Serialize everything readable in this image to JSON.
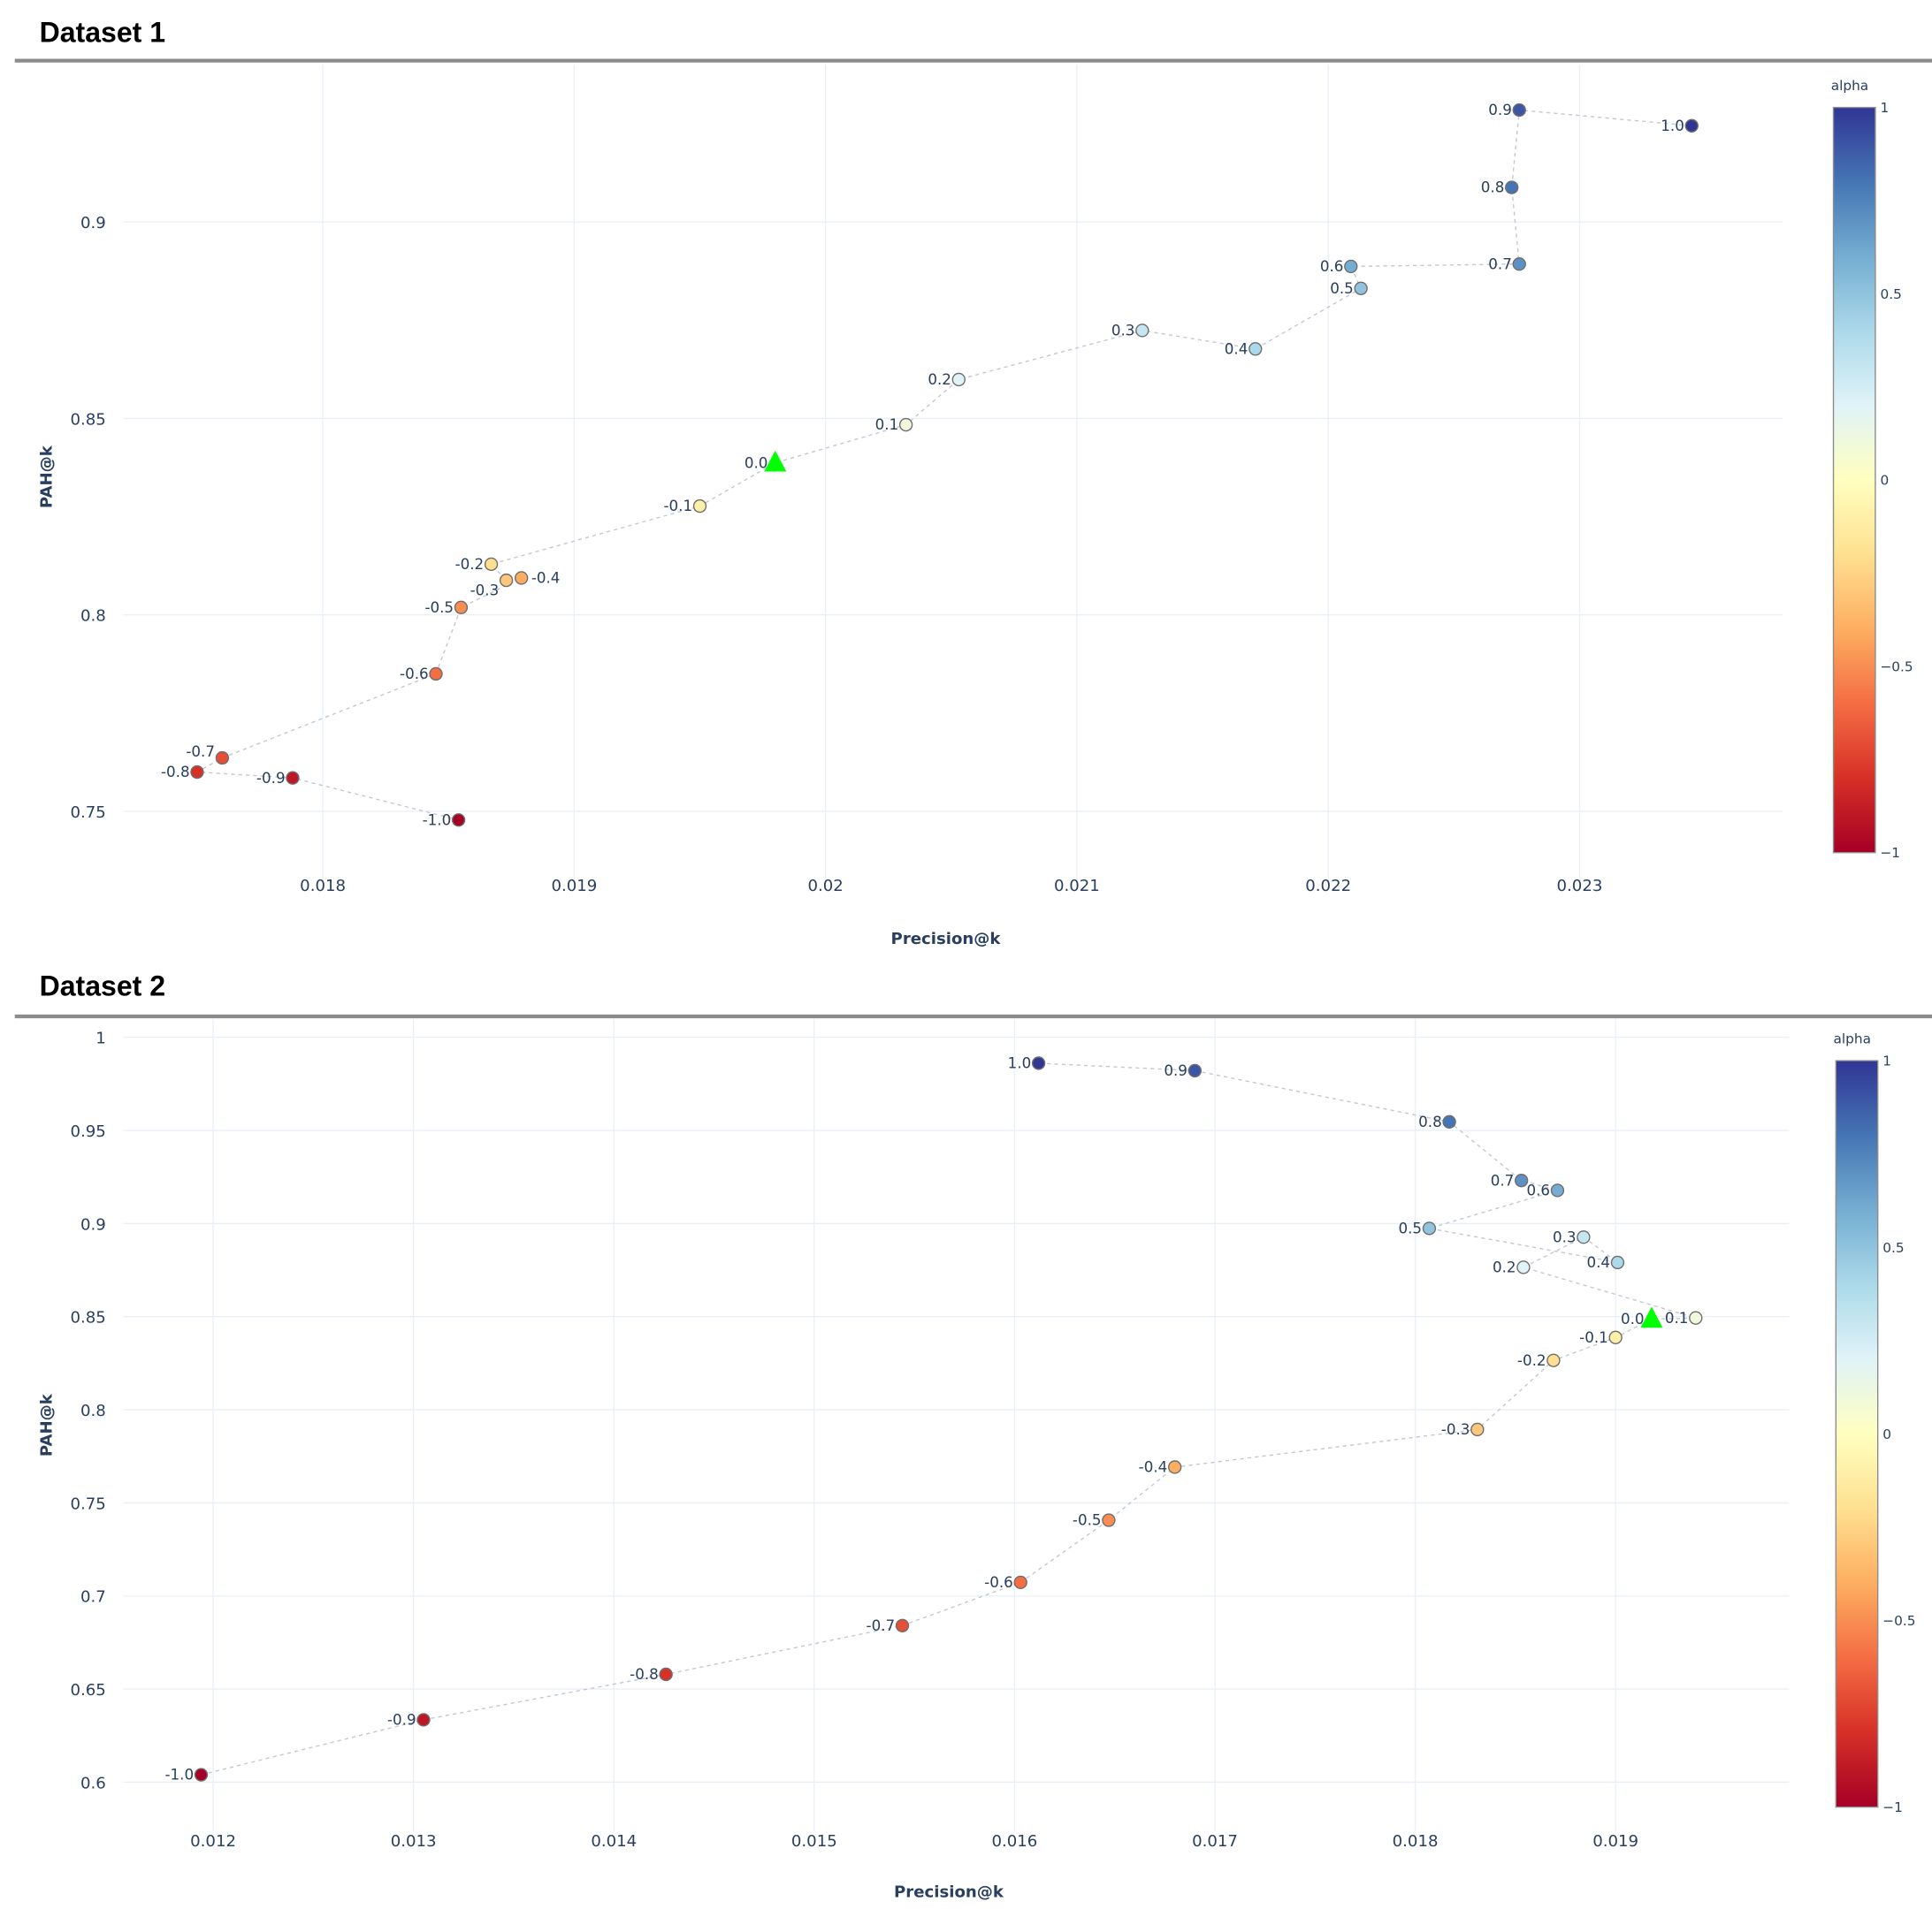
{
  "chart_data": [
    {
      "type": "scatter",
      "title": "Dataset 1",
      "xlabel": "Precision@k",
      "ylabel": "PAH@k",
      "xticks": [
        "0.018",
        "0.019",
        "0.02",
        "0.021",
        "0.022",
        "0.023"
      ],
      "yticks": [
        "0.75",
        "0.8",
        "0.85",
        "0.9"
      ],
      "grid": true,
      "colorbar": {
        "title": "alpha",
        "ticks": [
          "1",
          "0.5",
          "0",
          "−0.5",
          "−1"
        ],
        "colorscale": "RdYlBu",
        "range": [
          -1,
          1
        ]
      },
      "baseline_marker": {
        "shape": "triangle",
        "color": "#00ff00",
        "alpha_label": "0.0"
      },
      "points": [
        {
          "label": "-1.0",
          "alpha": -1.0,
          "x": 0.01854,
          "y": 0.7478
        },
        {
          "label": "-0.9",
          "alpha": -0.9,
          "x": 0.01788,
          "y": 0.7585
        },
        {
          "label": "-0.8",
          "alpha": -0.8,
          "x": 0.0175,
          "y": 0.76
        },
        {
          "label": "-0.7",
          "alpha": -0.7,
          "x": 0.0176,
          "y": 0.7636
        },
        {
          "label": "-0.6",
          "alpha": -0.6,
          "x": 0.01845,
          "y": 0.785
        },
        {
          "label": "-0.5",
          "alpha": -0.5,
          "x": 0.01855,
          "y": 0.8019
        },
        {
          "label": "-0.4",
          "alpha": -0.4,
          "x": 0.01879,
          "y": 0.8094
        },
        {
          "label": "-0.3",
          "alpha": -0.3,
          "x": 0.01873,
          "y": 0.8088
        },
        {
          "label": "-0.2",
          "alpha": -0.2,
          "x": 0.01867,
          "y": 0.8129
        },
        {
          "label": "-0.1",
          "alpha": -0.1,
          "x": 0.0195,
          "y": 0.8277
        },
        {
          "label": "0.0",
          "alpha": 0.0,
          "x": 0.0198,
          "y": 0.8387,
          "baseline": true
        },
        {
          "label": "0.1",
          "alpha": 0.1,
          "x": 0.02032,
          "y": 0.8484
        },
        {
          "label": "0.2",
          "alpha": 0.2,
          "x": 0.02053,
          "y": 0.8599
        },
        {
          "label": "0.3",
          "alpha": 0.3,
          "x": 0.02126,
          "y": 0.8724
        },
        {
          "label": "0.4",
          "alpha": 0.4,
          "x": 0.02171,
          "y": 0.8677
        },
        {
          "label": "0.5",
          "alpha": 0.5,
          "x": 0.02213,
          "y": 0.8831
        },
        {
          "label": "0.6",
          "alpha": 0.6,
          "x": 0.02209,
          "y": 0.8887
        },
        {
          "label": "0.7",
          "alpha": 0.7,
          "x": 0.02276,
          "y": 0.8893
        },
        {
          "label": "0.8",
          "alpha": 0.8,
          "x": 0.02273,
          "y": 0.9088
        },
        {
          "label": "0.9",
          "alpha": 0.9,
          "x": 0.02276,
          "y": 0.9285
        },
        {
          "label": "1.0",
          "alpha": 1.0,
          "x": 0.023446,
          "y": 0.9245
        }
      ]
    },
    {
      "type": "scatter",
      "title": "Dataset 2",
      "xlabel": "Precision@k",
      "ylabel": "PAH@k",
      "xticks": [
        "0.012",
        "0.013",
        "0.014",
        "0.015",
        "0.016",
        "0.017",
        "0.018",
        "0.019"
      ],
      "yticks": [
        "0.6",
        "0.65",
        "0.7",
        "0.75",
        "0.8",
        "0.85",
        "0.9",
        "0.95",
        "1"
      ],
      "grid": true,
      "colorbar": {
        "title": "alpha",
        "ticks": [
          "1",
          "0.5",
          "0",
          "−0.5",
          "−1"
        ],
        "colorscale": "RdYlBu",
        "range": [
          -1,
          1
        ]
      },
      "baseline_marker": {
        "shape": "triangle",
        "color": "#00ff00",
        "alpha_label": "0.0"
      },
      "points": [
        {
          "label": "-1.0",
          "alpha": -1.0,
          "x": 0.01194,
          "y": 0.604
        },
        {
          "label": "-0.9",
          "alpha": -0.9,
          "x": 0.01305,
          "y": 0.6335
        },
        {
          "label": "-0.8",
          "alpha": -0.8,
          "x": 0.01426,
          "y": 0.6579
        },
        {
          "label": "-0.7",
          "alpha": -0.7,
          "x": 0.01544,
          "y": 0.6841
        },
        {
          "label": "-0.6",
          "alpha": -0.6,
          "x": 0.01603,
          "y": 0.7073
        },
        {
          "label": "-0.5",
          "alpha": -0.5,
          "x": 0.01647,
          "y": 0.7407
        },
        {
          "label": "-0.4",
          "alpha": -0.4,
          "x": 0.0168,
          "y": 0.7692
        },
        {
          "label": "-0.3",
          "alpha": -0.3,
          "x": 0.01831,
          "y": 0.7894
        },
        {
          "label": "-0.2",
          "alpha": -0.2,
          "x": 0.01869,
          "y": 0.8265
        },
        {
          "label": "-0.1",
          "alpha": -0.1,
          "x": 0.019,
          "y": 0.8388
        },
        {
          "label": "0.0",
          "alpha": 0.0,
          "x": 0.01918,
          "y": 0.8487,
          "baseline": true
        },
        {
          "label": "0.1",
          "alpha": 0.1,
          "x": 0.0194,
          "y": 0.8493
        },
        {
          "label": "0.2",
          "alpha": 0.2,
          "x": 0.01854,
          "y": 0.8765
        },
        {
          "label": "0.3",
          "alpha": 0.3,
          "x": 0.01884,
          "y": 0.8927
        },
        {
          "label": "0.4",
          "alpha": 0.4,
          "x": 0.01901,
          "y": 0.8791
        },
        {
          "label": "0.5",
          "alpha": 0.5,
          "x": 0.01807,
          "y": 0.8974
        },
        {
          "label": "0.6",
          "alpha": 0.6,
          "x": 0.01871,
          "y": 0.9178
        },
        {
          "label": "0.7",
          "alpha": 0.7,
          "x": 0.01853,
          "y": 0.9231
        },
        {
          "label": "0.8",
          "alpha": 0.8,
          "x": 0.01817,
          "y": 0.9546
        },
        {
          "label": "0.9",
          "alpha": 0.9,
          "x": 0.0169,
          "y": 0.9821
        },
        {
          "label": "1.0",
          "alpha": 1.0,
          "x": 0.01612,
          "y": 0.9861
        }
      ]
    }
  ]
}
